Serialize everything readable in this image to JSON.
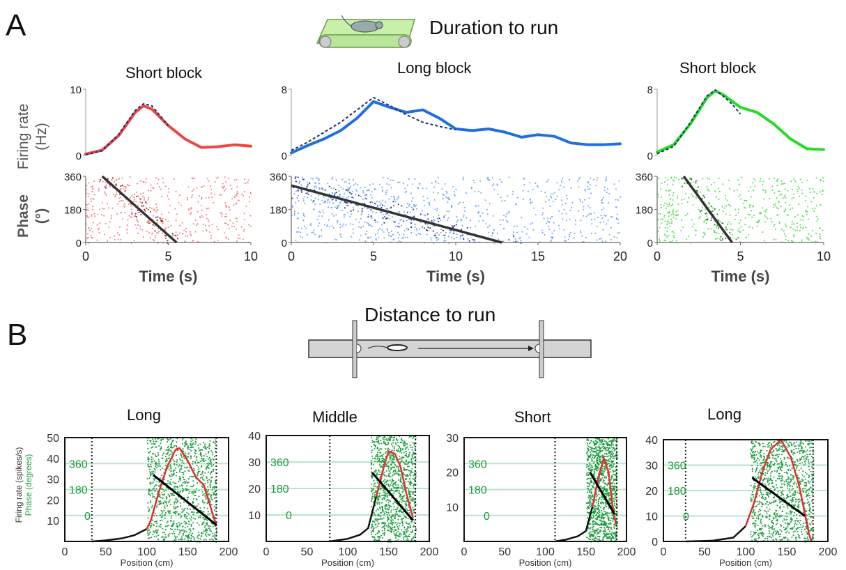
{
  "panel_a": {
    "letter": "A",
    "title": "Duration to run",
    "subtitles": [
      "Short block",
      "Long block",
      "Short block"
    ],
    "rate_ylabel_line1": "Firing rate",
    "rate_ylabel_line2": "(Hz)",
    "phase_ylabel_line1": "Phase",
    "phase_ylabel_line2": "(°)",
    "xlabel": "Time (s)"
  },
  "panel_b": {
    "letter": "B",
    "title": "Distance to run",
    "subtitles": [
      "Long",
      "Middle",
      "Short",
      "Long"
    ],
    "ylabel_rate": "Firing rate (spikes/s)",
    "ylabel_phase": "Phase (degrees)",
    "xlabel": "Position (cm)"
  },
  "colors": {
    "red": "#ef4444",
    "blue": "#1f6fe0",
    "green": "#16a34a",
    "dark_blue": "#1e2a8a",
    "phase_green": "#1a9a3c"
  },
  "chart_data": [
    {
      "type": "line",
      "panel": "A-1",
      "title": "Short block",
      "ylabel": "Firing rate (Hz)",
      "xlim": [
        0,
        10
      ],
      "ylim": [
        0,
        10
      ],
      "yticks": [
        0,
        10
      ],
      "color": "#ef4444",
      "series": [
        {
          "values_x": [
            0,
            1,
            2,
            3,
            3.5,
            4,
            5,
            6,
            7,
            8,
            9,
            10
          ],
          "values_y": [
            0.2,
            0.8,
            3,
            6.5,
            7.5,
            7,
            4.5,
            2.5,
            1.2,
            1.3,
            1.6,
            1.4
          ]
        },
        {
          "dashed": true,
          "values_x": [
            0,
            1,
            2,
            3,
            3.5,
            4,
            4.5,
            5
          ],
          "values_y": [
            0.1,
            0.7,
            3.2,
            6.8,
            7.8,
            7.5,
            6,
            4.5
          ]
        }
      ]
    },
    {
      "type": "line",
      "panel": "A-2",
      "title": "Long block",
      "ylabel": "Firing rate (Hz)",
      "xlim": [
        0,
        20
      ],
      "ylim": [
        0,
        8
      ],
      "yticks": [
        0,
        8
      ],
      "color": "#1f6fe0",
      "series": [
        {
          "values_x": [
            0,
            1,
            2,
            3,
            4,
            5,
            6,
            7,
            8,
            9,
            10,
            11,
            12,
            13,
            14,
            15,
            16,
            17,
            18,
            19,
            20
          ],
          "values_y": [
            0.3,
            1.2,
            2,
            3,
            4.5,
            6.5,
            5.8,
            5.2,
            5.5,
            4.5,
            3.2,
            3,
            3.2,
            2.8,
            2.2,
            2.5,
            2.3,
            1.5,
            1.3,
            1.3,
            1.4
          ]
        },
        {
          "dashed": true,
          "values_x": [
            0,
            1,
            2,
            3,
            4,
            5,
            6,
            7,
            8,
            9,
            10
          ],
          "values_y": [
            0.6,
            1.6,
            2.8,
            4,
            5.5,
            7,
            6,
            4.9,
            4,
            3.5,
            3.1
          ]
        }
      ]
    },
    {
      "type": "line",
      "panel": "A-3",
      "title": "Short block",
      "ylabel": "Firing rate (Hz)",
      "xlim": [
        0,
        10
      ],
      "ylim": [
        0,
        8
      ],
      "yticks": [
        0,
        8
      ],
      "color": "#22dd22",
      "series": [
        {
          "values_x": [
            0,
            1,
            2,
            3,
            3.5,
            4,
            5,
            6,
            7,
            8,
            9,
            10
          ],
          "values_y": [
            0.4,
            1.3,
            3.8,
            7,
            7.8,
            7.3,
            5.8,
            5.2,
            3.8,
            2,
            0.8,
            0.7
          ]
        },
        {
          "dashed": true,
          "values_x": [
            0,
            1,
            2,
            3,
            3.5,
            4,
            4.5,
            5
          ],
          "values_y": [
            0.2,
            1.1,
            4,
            7.2,
            7.9,
            7.1,
            6.2,
            5
          ]
        }
      ]
    },
    {
      "type": "scatter",
      "panel": "A-4",
      "ylabel": "Phase (°)",
      "xlabel": "Time (s)",
      "xlim": [
        0,
        10
      ],
      "ylim": [
        0,
        360
      ],
      "xticks": [
        0,
        5,
        10
      ],
      "yticks": [
        0,
        180,
        360
      ],
      "fit_line": [
        [
          1,
          360
        ],
        [
          5.5,
          0
        ]
      ],
      "color": "#ef4444"
    },
    {
      "type": "scatter",
      "panel": "A-5",
      "ylabel": "Phase (°)",
      "xlabel": "Time (s)",
      "xlim": [
        0,
        20
      ],
      "ylim": [
        0,
        360
      ],
      "xticks": [
        0,
        5,
        10,
        15,
        20
      ],
      "yticks": [
        0,
        180,
        360
      ],
      "fit_line": [
        [
          0,
          310
        ],
        [
          12.8,
          0
        ]
      ],
      "color": "#1f6fe0"
    },
    {
      "type": "scatter",
      "panel": "A-6",
      "ylabel": "Phase (°)",
      "xlabel": "Time (s)",
      "xlim": [
        0,
        10
      ],
      "ylim": [
        0,
        360
      ],
      "xticks": [
        0,
        5,
        10
      ],
      "yticks": [
        0,
        180,
        360
      ],
      "fit_line": [
        [
          1.6,
          360
        ],
        [
          4.5,
          0
        ]
      ],
      "color": "#22cc22"
    },
    {
      "type": "line",
      "panel": "B-1",
      "title": "Long",
      "xlabel": "Position (cm)",
      "xlim": [
        0,
        200
      ],
      "ylim": [
        0,
        50
      ],
      "yticks": [
        10,
        20,
        30,
        40,
        50
      ],
      "xticks": [
        0,
        50,
        100,
        150,
        200
      ],
      "phase_ticks": [
        "360",
        "180",
        "0"
      ],
      "walls": [
        33,
        185
      ],
      "rate": [
        [
          33,
          0
        ],
        [
          50,
          0.5
        ],
        [
          70,
          1.5
        ],
        [
          85,
          3
        ],
        [
          100,
          6
        ],
        [
          105,
          10
        ],
        [
          115,
          24
        ],
        [
          125,
          36
        ],
        [
          135,
          44
        ],
        [
          140,
          45
        ],
        [
          150,
          39
        ],
        [
          160,
          31
        ],
        [
          170,
          27
        ],
        [
          180,
          14
        ],
        [
          185,
          8
        ]
      ],
      "fit_line": [
        [
          108,
          32
        ],
        [
          185,
          8
        ]
      ]
    },
    {
      "type": "line",
      "panel": "B-2",
      "title": "Middle",
      "xlabel": "Position (cm)",
      "xlim": [
        0,
        200
      ],
      "ylim": [
        0,
        40
      ],
      "yticks": [
        10,
        20,
        30,
        40
      ],
      "xticks": [
        0,
        50,
        100,
        150,
        200
      ],
      "phase_ticks": [
        "360",
        "180",
        "0"
      ],
      "walls": [
        78,
        183
      ],
      "rate": [
        [
          78,
          0
        ],
        [
          100,
          1
        ],
        [
          115,
          2.5
        ],
        [
          125,
          5
        ],
        [
          135,
          17
        ],
        [
          145,
          29
        ],
        [
          150,
          34
        ],
        [
          158,
          33
        ],
        [
          165,
          28
        ],
        [
          172,
          18
        ],
        [
          180,
          9
        ]
      ],
      "fit_line": [
        [
          130,
          26
        ],
        [
          180,
          8
        ]
      ]
    },
    {
      "type": "line",
      "panel": "B-3",
      "title": "Short",
      "xlabel": "Position (cm)",
      "xlim": [
        0,
        200
      ],
      "ylim": [
        0,
        30
      ],
      "yticks": [
        10,
        20,
        30
      ],
      "xticks": [
        0,
        50,
        100,
        150,
        200
      ],
      "phase_ticks": [
        "360",
        "180",
        "0"
      ],
      "walls": [
        112,
        188
      ],
      "rate": [
        [
          112,
          0
        ],
        [
          125,
          0.5
        ],
        [
          140,
          1.5
        ],
        [
          150,
          3
        ],
        [
          158,
          10
        ],
        [
          165,
          18
        ],
        [
          172,
          24
        ],
        [
          178,
          20
        ],
        [
          183,
          10
        ],
        [
          187,
          5
        ]
      ],
      "fit_line": [
        [
          155,
          20
        ],
        [
          185,
          8
        ]
      ]
    },
    {
      "type": "line",
      "panel": "B-4",
      "title": "Long",
      "xlabel": "Position (cm)",
      "xlim": [
        0,
        200
      ],
      "ylim": [
        0,
        40
      ],
      "yticks": [
        0,
        10,
        20,
        30,
        40
      ],
      "xticks": [
        0,
        50,
        100,
        150,
        200
      ],
      "phase_ticks": [
        "360",
        "180",
        "0"
      ],
      "walls": [
        27,
        182
      ],
      "rate": [
        [
          27,
          0
        ],
        [
          60,
          0.3
        ],
        [
          85,
          1.5
        ],
        [
          100,
          6
        ],
        [
          110,
          15
        ],
        [
          120,
          27
        ],
        [
          130,
          36
        ],
        [
          143,
          40
        ],
        [
          155,
          33
        ],
        [
          165,
          22
        ],
        [
          172,
          11
        ],
        [
          177,
          3
        ],
        [
          180,
          0
        ]
      ],
      "fit_line": [
        [
          108,
          25
        ],
        [
          172,
          10
        ]
      ]
    }
  ]
}
